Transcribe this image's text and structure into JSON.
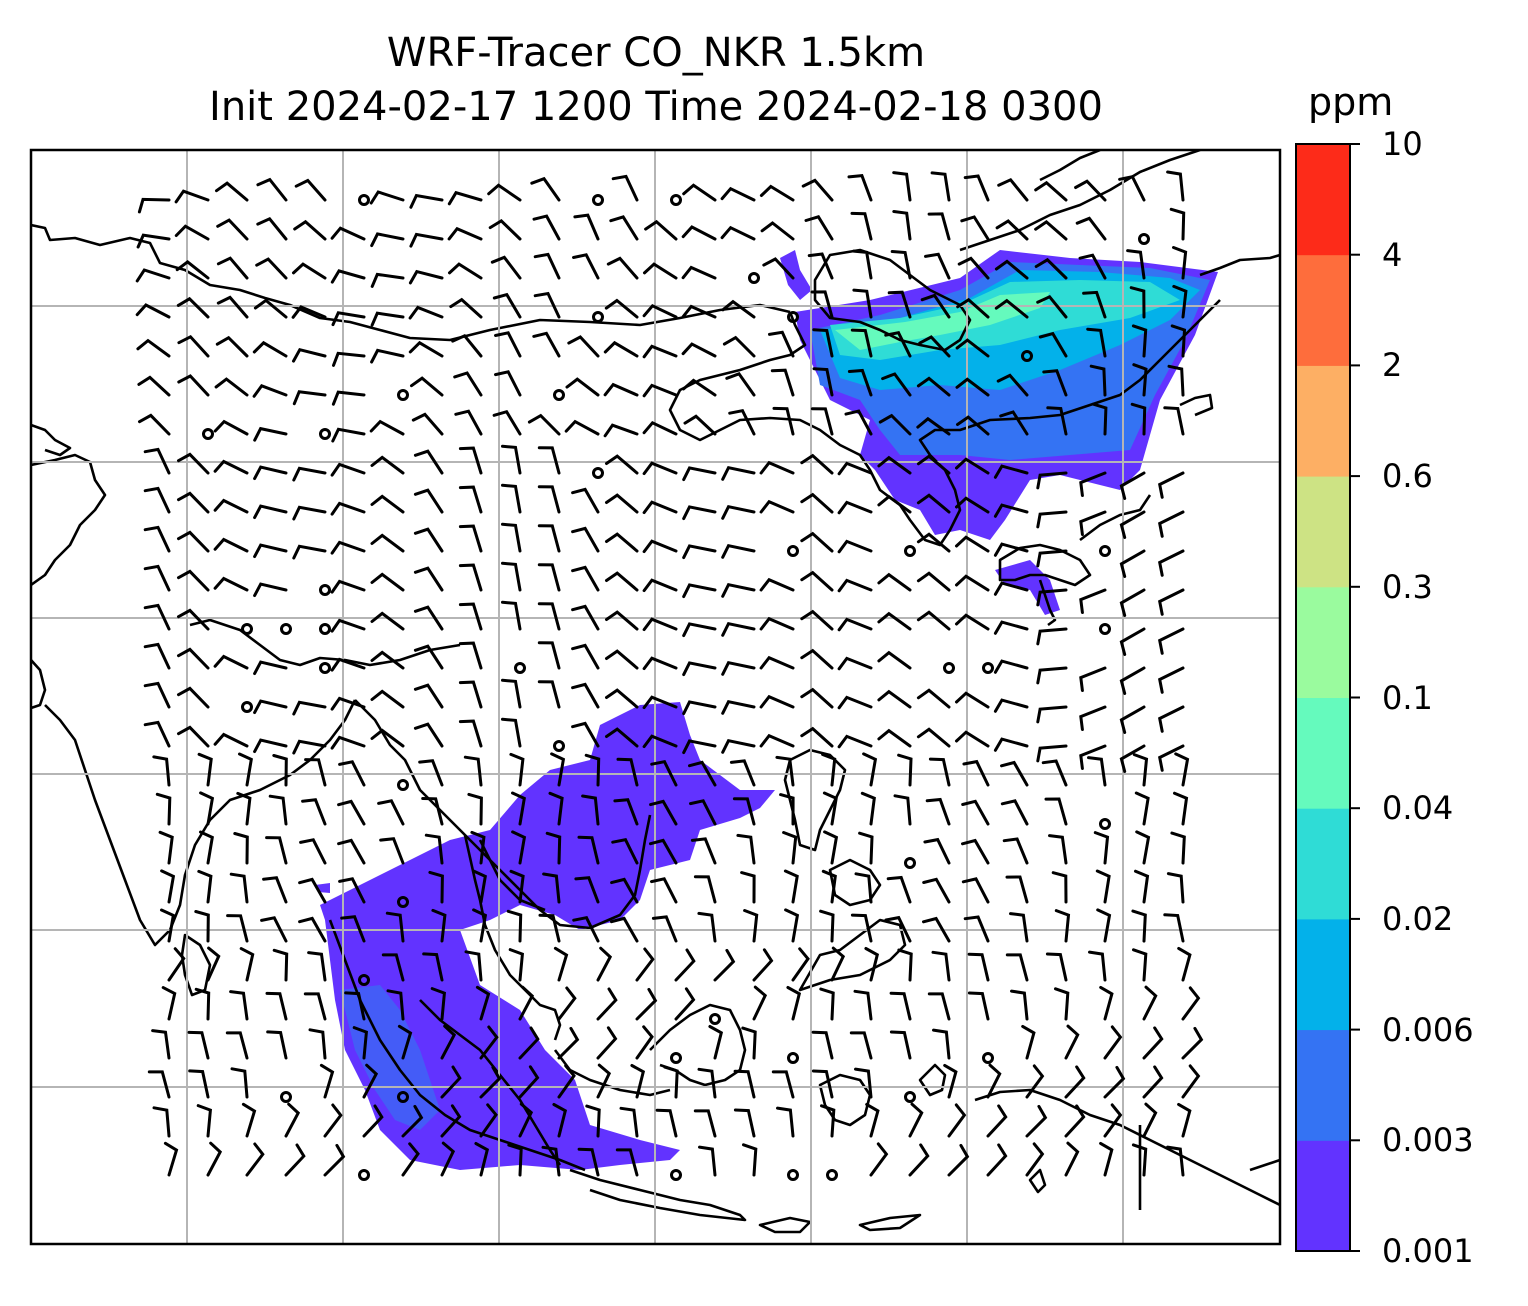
{
  "title": {
    "line1": "WRF-Tracer CO_NKR 1.5km",
    "line2": "Init 2024-02-17 1200 Time 2024-02-18 0300"
  },
  "colorbar": {
    "unit": "ppm",
    "ticks": [
      "0.001",
      "0.003",
      "0.006",
      "0.02",
      "0.04",
      "0.1",
      "0.3",
      "0.6",
      "2",
      "4",
      "10"
    ],
    "colors": [
      "#6233ff",
      "#3473f3",
      "#03b1ea",
      "#2fdcd6",
      "#65fabd",
      "#9afb9e",
      "#cde384",
      "#fdaf64",
      "#fe6d3c",
      "#fd2b19"
    ]
  },
  "map": {
    "gridlines": true,
    "plume_colors": {
      "lowest": "#6233ff",
      "low": "#3473f3",
      "mid": "#03b1ea",
      "midhigh": "#2fdcd6",
      "high": "#65fabd"
    }
  }
}
